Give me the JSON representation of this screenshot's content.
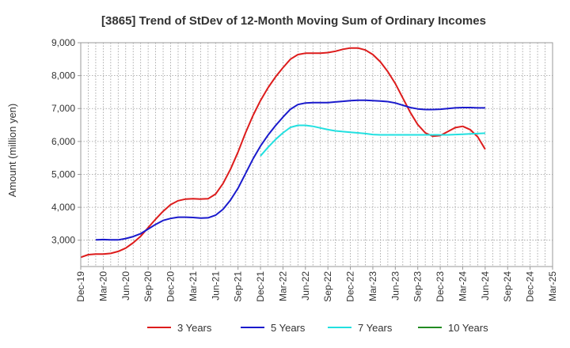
{
  "chart_data": {
    "type": "line",
    "title": "[3865]  Trend of StDev of 12-Month Moving Sum of Ordinary Incomes",
    "xlabel": "",
    "ylabel": "Amount (million yen)",
    "ylim": [
      2200,
      9000
    ],
    "yticks": [
      3000,
      4000,
      5000,
      6000,
      7000,
      8000,
      9000
    ],
    "ytick_labels": [
      "3,000",
      "4,000",
      "5,000",
      "6,000",
      "7,000",
      "8,000",
      "9,000"
    ],
    "xtick_labels": [
      "Dec-19",
      "Mar-20",
      "Jun-20",
      "Sep-20",
      "Dec-20",
      "Mar-21",
      "Jun-21",
      "Sep-21",
      "Dec-21",
      "Mar-22",
      "Jun-22",
      "Sep-22",
      "Dec-22",
      "Mar-23",
      "Jun-23",
      "Sep-23",
      "Dec-23",
      "Mar-24",
      "Jun-24",
      "Sep-24",
      "Dec-24",
      "Mar-25"
    ],
    "grid": true,
    "legend_position": "bottom",
    "series": [
      {
        "name": "3 Years",
        "color": "#dd1c1c",
        "start_index": 0,
        "values": [
          2480,
          2560,
          2580,
          2580,
          2600,
          2660,
          2760,
          2920,
          3120,
          3380,
          3640,
          3880,
          4080,
          4200,
          4250,
          4260,
          4250,
          4260,
          4400,
          4720,
          5160,
          5680,
          6260,
          6790,
          7240,
          7630,
          7960,
          8240,
          8500,
          8640,
          8680,
          8680,
          8680,
          8700,
          8740,
          8800,
          8840,
          8840,
          8780,
          8640,
          8420,
          8120,
          7760,
          7320,
          6880,
          6510,
          6260,
          6160,
          6180,
          6300,
          6420,
          6460,
          6360,
          6140,
          5760
        ]
      },
      {
        "name": "5 Years",
        "color": "#1a1acc",
        "start_index": 2,
        "values": [
          3010,
          3020,
          3010,
          3010,
          3050,
          3110,
          3200,
          3340,
          3480,
          3600,
          3660,
          3700,
          3700,
          3690,
          3670,
          3680,
          3760,
          3940,
          4220,
          4580,
          5020,
          5470,
          5860,
          6190,
          6480,
          6740,
          6980,
          7120,
          7170,
          7180,
          7180,
          7180,
          7200,
          7220,
          7240,
          7250,
          7250,
          7240,
          7230,
          7210,
          7170,
          7100,
          7030,
          6990,
          6970,
          6970,
          6980,
          7000,
          7020,
          7030,
          7030,
          7020,
          7020
        ]
      },
      {
        "name": "7 Years",
        "color": "#22e0e0",
        "start_index": 24,
        "values": [
          5560,
          5820,
          6060,
          6260,
          6430,
          6490,
          6490,
          6460,
          6410,
          6360,
          6320,
          6300,
          6280,
          6260,
          6240,
          6210,
          6200,
          6200,
          6200,
          6200,
          6200,
          6200,
          6200,
          6200,
          6200,
          6200,
          6210,
          6220,
          6230,
          6240,
          6250
        ]
      },
      {
        "name": "10 Years",
        "color": "#228b22",
        "start_index": 0,
        "values": []
      }
    ]
  }
}
